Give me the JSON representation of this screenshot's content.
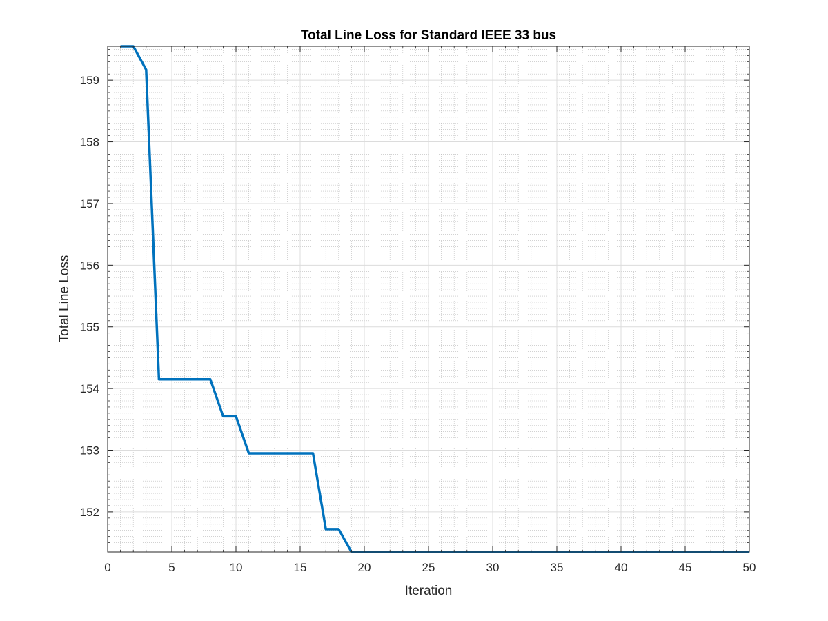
{
  "chart_data": {
    "type": "line",
    "title": "Total Line Loss for Standard IEEE  33 bus",
    "xlabel": "Iteration",
    "ylabel": "Total Line Loss",
    "xlim": [
      0,
      50
    ],
    "ylim": [
      151.35,
      159.55
    ],
    "xticks": [
      0,
      5,
      10,
      15,
      20,
      25,
      30,
      35,
      40,
      45,
      50
    ],
    "yticks": [
      152,
      153,
      154,
      155,
      156,
      157,
      158,
      159
    ],
    "grid": true,
    "minor_grid": true,
    "series": [
      {
        "color": "#0072BD",
        "x": [
          1,
          2,
          3,
          4,
          5,
          6,
          7,
          8,
          9,
          10,
          11,
          12,
          13,
          14,
          15,
          16,
          17,
          18,
          19,
          20,
          21,
          22,
          23,
          24,
          25,
          26,
          27,
          28,
          29,
          30,
          31,
          32,
          33,
          34,
          35,
          36,
          37,
          38,
          39,
          40,
          41,
          42,
          43,
          44,
          45,
          46,
          47,
          48,
          49,
          50
        ],
        "y": [
          159.55,
          159.55,
          159.17,
          154.15,
          154.15,
          154.15,
          154.15,
          154.15,
          153.55,
          153.55,
          152.95,
          152.95,
          152.95,
          152.95,
          152.95,
          152.95,
          151.72,
          151.72,
          151.35,
          151.35,
          151.35,
          151.35,
          151.35,
          151.35,
          151.35,
          151.35,
          151.35,
          151.35,
          151.35,
          151.35,
          151.35,
          151.35,
          151.35,
          151.35,
          151.35,
          151.35,
          151.35,
          151.35,
          151.35,
          151.35,
          151.35,
          151.35,
          151.35,
          151.35,
          151.35,
          151.35,
          151.35,
          151.35,
          151.35,
          151.35
        ]
      }
    ]
  }
}
